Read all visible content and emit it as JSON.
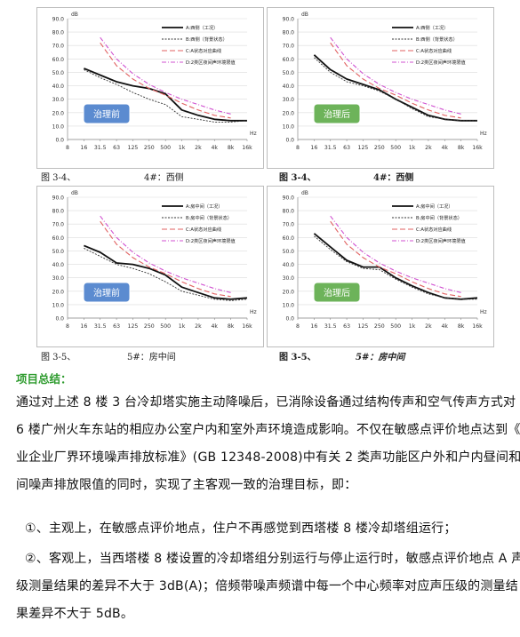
{
  "figures": [
    {
      "id": "fig1",
      "badge": "治理前",
      "badge_color": "#5b8bd0",
      "caption_left": "图 3-4、",
      "caption_right": "4#：西侧",
      "caption_bold": false,
      "legend": [
        "A:西侧（工况）",
        "B:西侧（背景状态）",
        "C:A状态对应曲线",
        "D:2类区夜间声环境限值"
      ]
    },
    {
      "id": "fig2",
      "badge": "治理后",
      "badge_color": "#6db35a",
      "caption_left": "图 3-4、",
      "caption_right": "4#：西侧",
      "caption_bold": true,
      "legend": [
        "A:西侧（工况）",
        "B:西侧（背景状态）",
        "C:A状态对应曲线",
        "D:2类区夜间声环境限值"
      ]
    },
    {
      "id": "fig3",
      "badge": "治理前",
      "badge_color": "#5b8bd0",
      "caption_left": "图 3-5、",
      "caption_right": "5#：房中间",
      "caption_bold": false,
      "legend": [
        "A:房中间（工况）",
        "B:房中间（背景状态）",
        "C:A状态对应曲线",
        "D:2类区夜间声环境限值"
      ]
    },
    {
      "id": "fig4",
      "badge": "治理后",
      "badge_color": "#6db35a",
      "caption_left": "图 3-5、",
      "caption_right": "5#：房中间",
      "caption_bold": true,
      "legend": [
        "A:房中间（工况）",
        "B:房中间（背景状态）",
        "C:A状态对应曲线",
        "D:2类区夜间声环境限值"
      ]
    }
  ],
  "chart_data": [
    {
      "type": "line",
      "ylabel": "dB",
      "xlabel": "Hz",
      "ylim": [
        0,
        90
      ],
      "yticks": [
        "0.0",
        "10.0",
        "20.0",
        "30.0",
        "40.0",
        "50.0",
        "60.0",
        "70.0",
        "80.0",
        "90.0"
      ],
      "categories": [
        "8",
        "16",
        "31.5",
        "63",
        "125",
        "250",
        "500",
        "1k",
        "2k",
        "4k",
        "8k",
        "16k"
      ],
      "series": [
        {
          "name": "A:西侧（工况）",
          "values": [
            null,
            53,
            48,
            43,
            40,
            38,
            34,
            22,
            18,
            15,
            14,
            14
          ]
        },
        {
          "name": "B:西侧（背景状态）",
          "values": [
            null,
            52,
            46,
            41,
            35,
            30,
            26,
            17,
            15,
            13,
            13,
            14
          ]
        },
        {
          "name": "C:A状态对应曲线",
          "values": [
            null,
            null,
            72,
            55,
            45,
            38,
            33,
            27,
            22,
            18,
            16,
            null
          ]
        },
        {
          "name": "D:2类区夜间声环境限值",
          "values": [
            null,
            null,
            76,
            60,
            49,
            41,
            35,
            30,
            26,
            22,
            19,
            null
          ]
        }
      ]
    },
    {
      "type": "line",
      "ylabel": "dB",
      "xlabel": "Hz",
      "ylim": [
        0,
        90
      ],
      "yticks": [
        "0.0",
        "10.0",
        "20.0",
        "30.0",
        "40.0",
        "50.0",
        "60.0",
        "70.0",
        "80.0",
        "90.0"
      ],
      "categories": [
        "8",
        "16",
        "31.5",
        "63",
        "125",
        "250",
        "500",
        "1k",
        "2k",
        "4k",
        "8k",
        "16k"
      ],
      "series": [
        {
          "name": "A:西侧（工况）",
          "values": [
            null,
            63,
            52,
            45,
            41,
            37,
            30,
            24,
            18,
            15,
            14,
            14
          ]
        },
        {
          "name": "B:西侧（背景状态）",
          "values": [
            null,
            61,
            50,
            43,
            40,
            36,
            30,
            23,
            17,
            15,
            14,
            14
          ]
        },
        {
          "name": "C:A状态对应曲线",
          "values": [
            null,
            null,
            72,
            55,
            45,
            38,
            33,
            27,
            22,
            18,
            16,
            null
          ]
        },
        {
          "name": "D:2类区夜间声环境限值",
          "values": [
            null,
            null,
            76,
            60,
            49,
            41,
            35,
            30,
            26,
            22,
            19,
            null
          ]
        }
      ]
    },
    {
      "type": "line",
      "ylabel": "dB",
      "xlabel": "Hz",
      "ylim": [
        0,
        90
      ],
      "yticks": [
        "0.0",
        "10.0",
        "20.0",
        "30.0",
        "40.0",
        "50.0",
        "60.0",
        "70.0",
        "80.0",
        "90.0"
      ],
      "categories": [
        "8",
        "16",
        "31.5",
        "63",
        "125",
        "250",
        "500",
        "1k",
        "2k",
        "4k",
        "8k",
        "16k"
      ],
      "series": [
        {
          "name": "A:房中间（工况）",
          "values": [
            null,
            54,
            49,
            41,
            40,
            37,
            32,
            23,
            19,
            15,
            14,
            15
          ]
        },
        {
          "name": "B:房中间（背景状态）",
          "values": [
            null,
            52,
            46,
            40,
            37,
            33,
            27,
            20,
            17,
            14,
            13,
            14
          ]
        },
        {
          "name": "C:A状态对应曲线",
          "values": [
            null,
            null,
            72,
            55,
            45,
            38,
            33,
            27,
            22,
            18,
            16,
            null
          ]
        },
        {
          "name": "D:2类区夜间声环境限值",
          "values": [
            null,
            null,
            76,
            60,
            49,
            41,
            35,
            30,
            26,
            22,
            19,
            null
          ]
        }
      ]
    },
    {
      "type": "line",
      "ylabel": "dB",
      "xlabel": "Hz",
      "ylim": [
        0,
        90
      ],
      "yticks": [
        "0.0",
        "10.0",
        "20.0",
        "30.0",
        "40.0",
        "50.0",
        "60.0",
        "70.0",
        "80.0",
        "90.0"
      ],
      "categories": [
        "8",
        "16",
        "31.5",
        "63",
        "125",
        "250",
        "500",
        "1k",
        "2k",
        "4k",
        "8k",
        "16k"
      ],
      "series": [
        {
          "name": "A:房中间（工况）",
          "values": [
            null,
            63,
            53,
            43,
            38,
            38,
            30,
            24,
            19,
            15,
            14,
            15
          ]
        },
        {
          "name": "B:房中间（背景状态）",
          "values": [
            null,
            61,
            51,
            42,
            37,
            36,
            29,
            23,
            18,
            15,
            14,
            14
          ]
        },
        {
          "name": "C:A状态对应曲线",
          "values": [
            null,
            null,
            72,
            55,
            45,
            38,
            33,
            27,
            22,
            18,
            16,
            null
          ]
        },
        {
          "name": "D:2类区夜间声环境限值",
          "values": [
            null,
            null,
            76,
            60,
            49,
            41,
            35,
            30,
            26,
            22,
            19,
            null
          ]
        }
      ]
    }
  ],
  "summary": {
    "title": "项目总结：",
    "paragraph_lines": [
      "通过对上述 8 楼 3 台冷却塔实施主动降噪后，已消除设备通过结构传声和空气传声方式对",
      "6 楼广州火车东站的相应办公室户内和室外声环境造成影响。不仅在敏感点评价地点达到《工",
      "业企业厂界环境噪声排放标准》(GB 12348-2008)中有关 2 类声功能区户外和户内昼间和夜",
      "间噪声排放限值的同时，实现了主客观一致的治理目标，即："
    ],
    "item1": "①、主观上，在敏感点评价地点，住户不再感觉到西塔楼 8 楼冷却塔组运行；",
    "item2_lines": [
      "②、客观上，当西塔楼 8 楼设置的冷却塔组分别运行与停止运行时，敏感点评价地点 A 声",
      "级测量结果的差异不大于 3dB(A)；倍频带噪声频谱中每一个中心频率对应声压级的测量结",
      "果差异不大于  5dB。"
    ]
  }
}
